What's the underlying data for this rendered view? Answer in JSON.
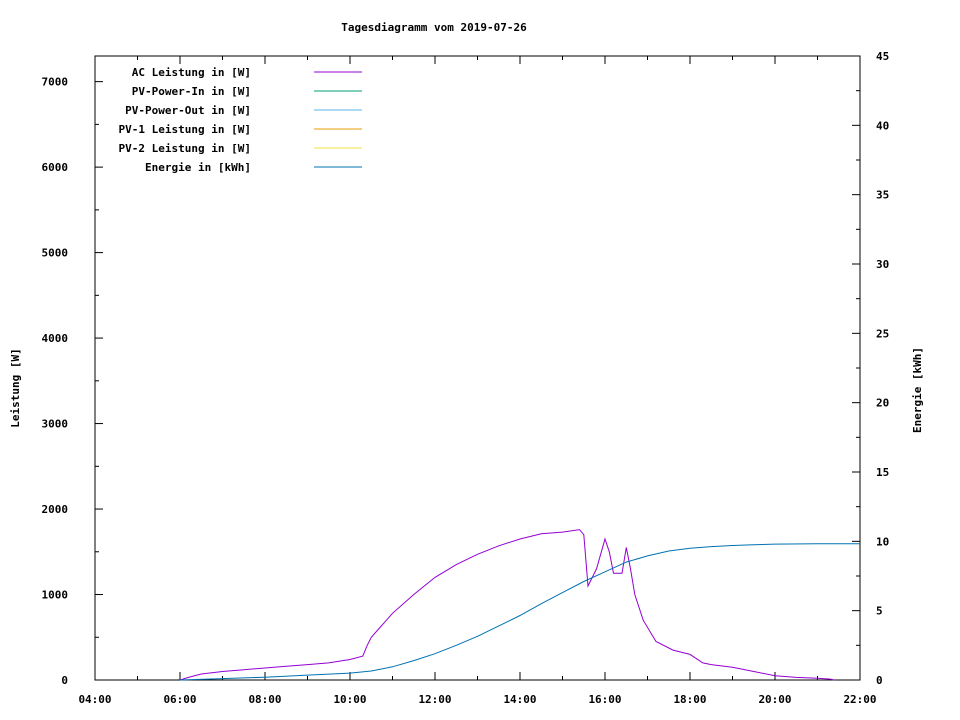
{
  "chart_data": {
    "type": "line",
    "title": "Tagesdiagramm vom 2019-07-26",
    "xlabel": "",
    "ylabel": "Leistung [W]",
    "y2label": "Energie [kWh]",
    "x_ticks": [
      "04:00",
      "06:00",
      "08:00",
      "10:00",
      "12:00",
      "14:00",
      "16:00",
      "18:00",
      "20:00",
      "22:00"
    ],
    "y_ticks": [
      "0",
      "1000",
      "2000",
      "3000",
      "4000",
      "5000",
      "6000",
      "7000"
    ],
    "y2_ticks": [
      "0",
      "5",
      "10",
      "15",
      "20",
      "25",
      "30",
      "35",
      "40",
      "45"
    ],
    "xlim": [
      4,
      22
    ],
    "ylim": [
      0,
      7300
    ],
    "y2lim": [
      0,
      45
    ],
    "grid": false,
    "legend_position": "top-left",
    "series": [
      {
        "name": "AC Leistung in [W]",
        "axis": "left",
        "color": "#9400d3",
        "x": [
          6.0,
          6.2,
          6.5,
          7.0,
          7.5,
          8.0,
          8.5,
          9.0,
          9.5,
          10.0,
          10.3,
          10.4,
          10.5,
          11.0,
          11.5,
          12.0,
          12.5,
          13.0,
          13.5,
          14.0,
          14.5,
          15.0,
          15.4,
          15.5,
          15.6,
          15.8,
          16.0,
          16.1,
          16.2,
          16.4,
          16.5,
          16.6,
          16.7,
          16.9,
          17.2,
          17.6,
          18.0,
          18.3,
          18.5,
          19.0,
          19.5,
          20.0,
          20.5,
          21.0,
          21.3,
          21.4
        ],
        "y": [
          0,
          30,
          70,
          100,
          120,
          140,
          160,
          180,
          200,
          240,
          280,
          400,
          500,
          780,
          1000,
          1200,
          1350,
          1470,
          1570,
          1650,
          1710,
          1730,
          1760,
          1700,
          1100,
          1300,
          1650,
          1500,
          1250,
          1250,
          1550,
          1300,
          1000,
          700,
          450,
          350,
          300,
          200,
          180,
          150,
          100,
          50,
          30,
          20,
          10,
          0
        ]
      },
      {
        "name": "PV-Power-In in [W]",
        "axis": "left",
        "color": "#009e73",
        "x": [],
        "y": []
      },
      {
        "name": "PV-Power-Out in [W]",
        "axis": "left",
        "color": "#56b4e9",
        "x": [],
        "y": []
      },
      {
        "name": "PV-1 Leistung in [W]",
        "axis": "left",
        "color": "#e69f00",
        "x": [],
        "y": []
      },
      {
        "name": "PV-2 Leistung in [W]",
        "axis": "left",
        "color": "#f0e442",
        "x": [],
        "y": []
      },
      {
        "name": "Energie in [kWh]",
        "axis": "right",
        "color": "#0072b2",
        "x": [
          6.0,
          7.0,
          8.0,
          9.0,
          10.0,
          10.5,
          11.0,
          11.5,
          12.0,
          12.5,
          13.0,
          13.5,
          14.0,
          14.5,
          15.0,
          15.5,
          16.0,
          16.5,
          17.0,
          17.5,
          18.0,
          18.5,
          19.0,
          19.5,
          20.0,
          21.0,
          22.0
        ],
        "y": [
          0,
          0.1,
          0.2,
          0.35,
          0.5,
          0.65,
          0.95,
          1.4,
          1.9,
          2.5,
          3.15,
          3.9,
          4.65,
          5.5,
          6.3,
          7.1,
          7.8,
          8.5,
          8.95,
          9.3,
          9.5,
          9.62,
          9.7,
          9.75,
          9.8,
          9.82,
          9.82
        ]
      }
    ]
  }
}
